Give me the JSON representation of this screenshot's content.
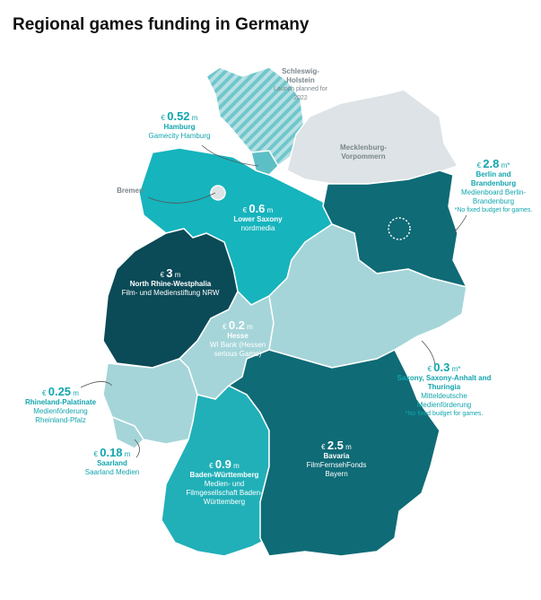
{
  "header": {
    "title": "Regional games funding in Germany"
  },
  "regions": [
    {
      "name": "Schleswig-Holstein",
      "note": "Launch planned for 2022"
    },
    {
      "currency": "€",
      "amount": "0.52",
      "unit": "m",
      "name": "Hamburg",
      "org": "Gamecity Hamburg"
    },
    {
      "name": "Bremen"
    },
    {
      "name": "Mecklenburg-Vorpommern"
    },
    {
      "currency": "€",
      "amount": "2.8",
      "unit": "m*",
      "name": "Berlin and Brandenburg",
      "org": "Medienboard Berlin-Brandenburg",
      "note": "*No fixed budget for games."
    },
    {
      "currency": "€",
      "amount": "0.6",
      "unit": "m",
      "name": "Lower Saxony",
      "org": "nordmedia"
    },
    {
      "currency": "€",
      "amount": "3",
      "unit": "m",
      "name": "North Rhine-Westphalia",
      "org": "Film- und Medienstiftung NRW"
    },
    {
      "currency": "€",
      "amount": "0.2",
      "unit": "m",
      "name": "Hesse",
      "org": "WI Bank (Hessen serious Game)"
    },
    {
      "currency": "€",
      "amount": "0.3",
      "unit": "m*",
      "name": "Saxony, Saxony-Anhalt and Thuringia",
      "org": "Mitteldeutsche Medienförderung",
      "note": "*No fixed budget for games."
    },
    {
      "currency": "€",
      "amount": "0.25",
      "unit": "m",
      "name": "Rhineland-Palatinate",
      "org": "Medienförderung Rheinland-Pfalz"
    },
    {
      "currency": "€",
      "amount": "0.18",
      "unit": "m",
      "name": "Saarland",
      "org": "Saarland Medien"
    },
    {
      "currency": "€",
      "amount": "0.9",
      "unit": "m",
      "name": "Baden-Württemberg",
      "org": "Medien- und Filmgesellschaft Baden-Württemberg"
    },
    {
      "currency": "€",
      "amount": "2.5",
      "unit": "m",
      "name": "Bavaria",
      "org": "FilmFernsehFonds Bayern"
    }
  ]
}
